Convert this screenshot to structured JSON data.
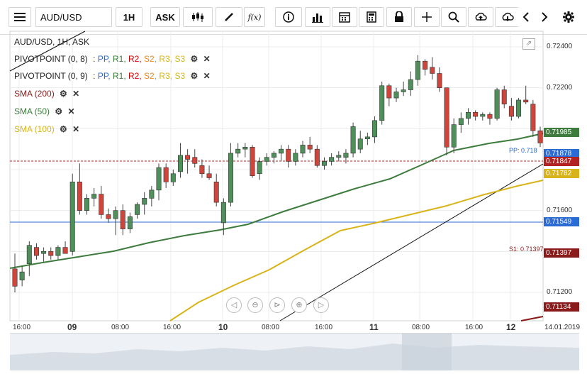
{
  "toolbar": {
    "symbol": "AUD/USD",
    "interval": "1H",
    "price_type": "ASK",
    "fx_label": "f(x)",
    "icons": [
      "menu-icon",
      "candles-icon",
      "pencil-icon",
      "fx-icon",
      "info-icon",
      "bars-icon",
      "calendar-icon",
      "calculator-icon",
      "lock-icon",
      "crosshair-icon",
      "zoom-icon",
      "upload-icon",
      "download-icon",
      "prev-icon",
      "next-icon",
      "settings-icon"
    ]
  },
  "chart": {
    "header": "AUD/USD, 1H, ASK",
    "indicators": [
      {
        "name": "PIVOTPOINT (0, 8)",
        "sep": ":",
        "levels": [
          "PP,",
          "R1,",
          "R2,",
          "S2,",
          "R3,",
          "S3"
        ]
      },
      {
        "name": "PIVOTPOINT (0, 9)",
        "sep": ":",
        "levels": [
          "PP,",
          "R1,",
          "R2,",
          "S2,",
          "R3,",
          "S3"
        ]
      }
    ],
    "smas": [
      {
        "name": "SMA (200)",
        "color": "#8b1a1a"
      },
      {
        "name": "SMA (50)",
        "color": "#3a7a3a"
      },
      {
        "name": "SMA (100)",
        "color": "#d9b51c"
      }
    ],
    "y_ticks": [
      "0.72400",
      "0.72200",
      "0.71600",
      "0.71200"
    ],
    "tags": [
      {
        "text": "0.71985",
        "color": "#3d7c3d"
      },
      {
        "text": "0.71878",
        "color": "#2a6bd6"
      },
      {
        "text": "0.71847",
        "color": "#b22222"
      },
      {
        "text": "0.71782",
        "color": "#d8b41a"
      },
      {
        "text": "0.71549",
        "color": "#2a6bd6"
      },
      {
        "text": "0.71397",
        "color": "#8b1a1a"
      },
      {
        "text": "0.71134",
        "color": "#8b1a1a"
      }
    ],
    "pp_label": "PP: 0.718",
    "s1_label": "S1: 0.71397",
    "x_labels": [
      "16:00",
      "09",
      "08:00",
      "16:00",
      "10",
      "08:00",
      "16:00",
      "11",
      "08:00",
      "16:00",
      "12",
      "14.01.2019"
    ]
  },
  "chart_data": {
    "type": "candlestick",
    "title": "AUD/USD, 1H, ASK",
    "ylim": [
      0.711,
      0.725
    ],
    "candles": [
      [
        0.71315,
        0.7139,
        0.712,
        0.7123
      ],
      [
        0.7126,
        0.7133,
        0.7123,
        0.713
      ],
      [
        0.7134,
        0.7145,
        0.7128,
        0.7143
      ],
      [
        0.7142,
        0.7144,
        0.7136,
        0.7138
      ],
      [
        0.7139,
        0.7142,
        0.7135,
        0.714
      ],
      [
        0.714,
        0.7142,
        0.7136,
        0.7138
      ],
      [
        0.7138,
        0.7143,
        0.7136,
        0.7142
      ],
      [
        0.7142,
        0.7145,
        0.714,
        0.7139
      ],
      [
        0.714,
        0.7178,
        0.7138,
        0.7174
      ],
      [
        0.7174,
        0.7183,
        0.7158,
        0.716
      ],
      [
        0.716,
        0.7168,
        0.7158,
        0.7166
      ],
      [
        0.7166,
        0.7171,
        0.7162,
        0.7168
      ],
      [
        0.7168,
        0.7172,
        0.7156,
        0.7158
      ],
      [
        0.7158,
        0.7161,
        0.7154,
        0.7156
      ],
      [
        0.7156,
        0.7162,
        0.7148,
        0.716
      ],
      [
        0.716,
        0.7163,
        0.7148,
        0.7151
      ],
      [
        0.7151,
        0.7159,
        0.7149,
        0.7157
      ],
      [
        0.7158,
        0.7164,
        0.7156,
        0.7163
      ],
      [
        0.7163,
        0.7169,
        0.7158,
        0.7166
      ],
      [
        0.7166,
        0.7172,
        0.7162,
        0.717
      ],
      [
        0.717,
        0.7183,
        0.7165,
        0.7181
      ],
      [
        0.7181,
        0.7183,
        0.7171,
        0.7174
      ],
      [
        0.7174,
        0.718,
        0.7172,
        0.7178
      ],
      [
        0.7179,
        0.7193,
        0.7176,
        0.7187
      ],
      [
        0.7187,
        0.719,
        0.7178,
        0.7185
      ],
      [
        0.7186,
        0.719,
        0.7181,
        0.7183
      ],
      [
        0.7182,
        0.7185,
        0.7176,
        0.7178
      ],
      [
        0.7178,
        0.7182,
        0.7175,
        0.7176
      ],
      [
        0.7174,
        0.7178,
        0.7162,
        0.7164
      ],
      [
        0.7154,
        0.7166,
        0.7148,
        0.7164
      ],
      [
        0.7164,
        0.7193,
        0.7162,
        0.7188
      ],
      [
        0.7188,
        0.7193,
        0.7186,
        0.719
      ],
      [
        0.719,
        0.7193,
        0.7186,
        0.7191
      ],
      [
        0.7191,
        0.7192,
        0.7176,
        0.7177
      ],
      [
        0.7178,
        0.7186,
        0.7175,
        0.7184
      ],
      [
        0.7184,
        0.7188,
        0.7182,
        0.7186
      ],
      [
        0.7186,
        0.7189,
        0.7183,
        0.7188
      ],
      [
        0.7188,
        0.7192,
        0.7184,
        0.719
      ],
      [
        0.719,
        0.7192,
        0.7181,
        0.7184
      ],
      [
        0.7184,
        0.719,
        0.7182,
        0.7188
      ],
      [
        0.7188,
        0.7194,
        0.7186,
        0.7192
      ],
      [
        0.7192,
        0.7196,
        0.7188,
        0.719
      ],
      [
        0.719,
        0.7192,
        0.7181,
        0.7182
      ],
      [
        0.7182,
        0.7186,
        0.718,
        0.7184
      ],
      [
        0.7184,
        0.7188,
        0.7182,
        0.7186
      ],
      [
        0.7186,
        0.7189,
        0.7184,
        0.7187
      ],
      [
        0.7186,
        0.719,
        0.7183,
        0.7188
      ],
      [
        0.7188,
        0.7203,
        0.7186,
        0.7201
      ],
      [
        0.719,
        0.7199,
        0.7188,
        0.7195
      ],
      [
        0.7195,
        0.7198,
        0.7192,
        0.7196
      ],
      [
        0.7196,
        0.7206,
        0.7193,
        0.7204
      ],
      [
        0.7204,
        0.7223,
        0.7202,
        0.7221
      ],
      [
        0.7221,
        0.7222,
        0.7211,
        0.7215
      ],
      [
        0.7215,
        0.722,
        0.7213,
        0.7218
      ],
      [
        0.7218,
        0.7223,
        0.7216,
        0.7219
      ],
      [
        0.7219,
        0.7228,
        0.7216,
        0.7224
      ],
      [
        0.7224,
        0.7236,
        0.7221,
        0.7233
      ],
      [
        0.7233,
        0.7234,
        0.7226,
        0.7229
      ],
      [
        0.723,
        0.7235,
        0.7224,
        0.7227
      ],
      [
        0.7227,
        0.723,
        0.7218,
        0.722
      ],
      [
        0.722,
        0.722,
        0.7187,
        0.7191
      ],
      [
        0.7191,
        0.7205,
        0.7188,
        0.7202
      ],
      [
        0.7202,
        0.7208,
        0.7198,
        0.7205
      ],
      [
        0.7205,
        0.721,
        0.7202,
        0.7208
      ],
      [
        0.7208,
        0.7209,
        0.7204,
        0.7206
      ],
      [
        0.7206,
        0.7208,
        0.7204,
        0.7207
      ],
      [
        0.7207,
        0.7208,
        0.7202,
        0.7205
      ],
      [
        0.7205,
        0.722,
        0.7204,
        0.7219
      ],
      [
        0.7219,
        0.7221,
        0.721,
        0.7212
      ],
      [
        0.7211,
        0.7215,
        0.7204,
        0.7206
      ],
      [
        0.7206,
        0.7215,
        0.7205,
        0.7214
      ],
      [
        0.7214,
        0.7221,
        0.7212,
        0.7213
      ],
      [
        0.7212,
        0.7214,
        0.7196,
        0.7199
      ],
      [
        0.7199,
        0.7201,
        0.7191,
        0.7193
      ]
    ]
  }
}
